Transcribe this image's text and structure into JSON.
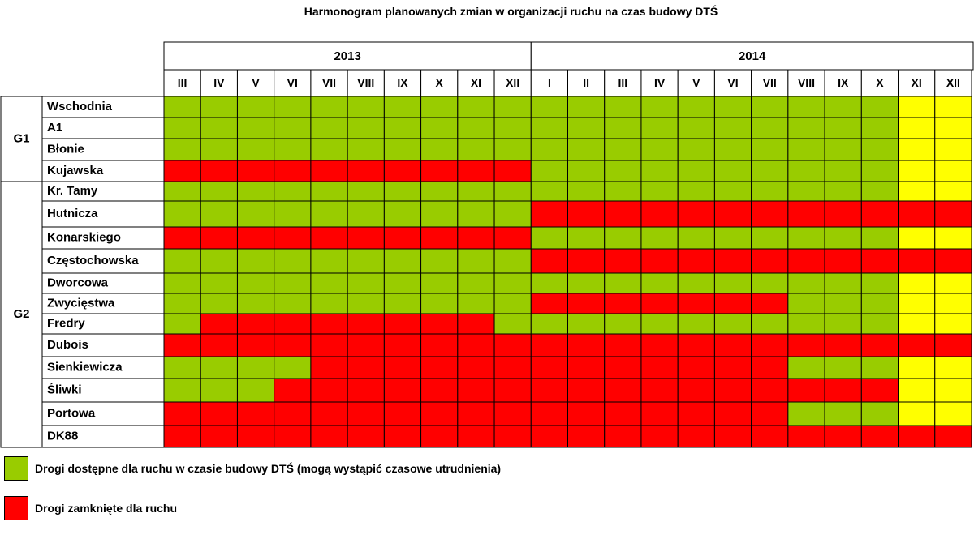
{
  "chart_data": {
    "type": "heatmap",
    "title": "Harmonogram planowanych zmian w organizacji ruchu na czas budowy DTŚ",
    "years": [
      {
        "label": "2013",
        "span": 10
      },
      {
        "label": "2014",
        "span": 12
      }
    ],
    "months": [
      "III",
      "IV",
      "V",
      "VI",
      "VII",
      "VIII",
      "IX",
      "X",
      "XI",
      "XII",
      "I",
      "II",
      "III",
      "IV",
      "V",
      "VI",
      "VII",
      "VIII",
      "IX",
      "X",
      "XI",
      "XII"
    ],
    "groups": [
      {
        "label": "G1",
        "rows": 4
      },
      {
        "label": "G2",
        "rows": 12
      }
    ],
    "rows": [
      {
        "name": "Wschodnia",
        "status": "GGGGGGGGGGGGGGGGGGGGYY"
      },
      {
        "name": "A1",
        "status": "GGGGGGGGGGGGGGGGGGGGYY"
      },
      {
        "name": "Błonie",
        "status": "GGGGGGGGGGGGGGGGGGGGYY"
      },
      {
        "name": "Kujawska",
        "status": "RRRRRRRRRRGGGGGGGGGGYY"
      },
      {
        "name": "Kr. Tamy",
        "status": "GGGGGGGGGGGGGGGGGGGGYY"
      },
      {
        "name": "Hutnicza",
        "status": "GGGGGGGGGGRRRRRRRRRRRR"
      },
      {
        "name": "Konarskiego",
        "status": "RRRRRRRRRRGGGGGGGGGGYY"
      },
      {
        "name": "Częstochowska",
        "status": "GGGGGGGGGGRRRRRRRRRRRR"
      },
      {
        "name": "Dworcowa",
        "status": "GGGGGGGGGGGGGGGGGGGGYY"
      },
      {
        "name": "Zwycięstwa",
        "status": "GGGGGGGGGGRRRRRRRGGGYY"
      },
      {
        "name": "Fredry",
        "status": "GRRRRRRRRGGGGGGGGGGGYY"
      },
      {
        "name": "Dubois",
        "status": "RRRRRRRRRRRRRRRRRRRRRR"
      },
      {
        "name": "Sienkiewicza",
        "status": "GGGGRRRRRRRRRRRRRGGGYY"
      },
      {
        "name": "Śliwki",
        "status": "GGGRRRRRRRRRRRRRRRRRYY"
      },
      {
        "name": "Portowa",
        "status": "RRRRRRRRRRRRRRRRRGGGYY"
      },
      {
        "name": "DK88",
        "status": "RRRRRRRRRRRRRRRRRRRRRR"
      }
    ],
    "colors": {
      "G": "#99cc00",
      "R": "#ff0000",
      "Y": "#ffff00"
    },
    "legend": [
      {
        "key": "G",
        "color": "#99cc00",
        "label": "Drogi dostępne dla ruchu w czasie budowy DTŚ (mogą wystąpić czasowe utrudnienia)"
      },
      {
        "key": "R",
        "color": "#ff0000",
        "label": "Drogi zamknięte dla ruchu"
      }
    ]
  }
}
